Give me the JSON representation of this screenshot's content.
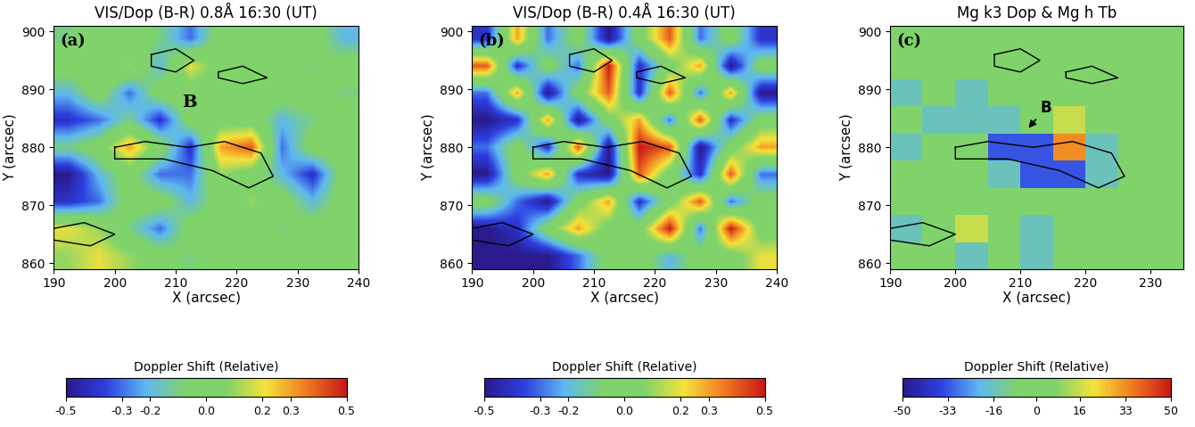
{
  "chart_data": [
    {
      "type": "heatmap",
      "title": "VIS/Dop (B-R) 0.8Å 16:30 (UT)",
      "panel_label": "(a)",
      "xlabel": "X (arcsec)",
      "ylabel": "Y (arcsec)",
      "xlim": [
        190,
        240
      ],
      "ylim": [
        859,
        901
      ],
      "xticks": [
        190,
        200,
        210,
        220,
        230,
        240
      ],
      "yticks": [
        860,
        870,
        880,
        890,
        900
      ],
      "colorbar_label": "Doppler Shift (Relative)",
      "clim": [
        -0.5,
        0.5
      ],
      "colorbar_ticks": [
        -0.5,
        -0.3,
        -0.2,
        {
          "value": 0,
          "label": "0.0"
        },
        0.2,
        0.3,
        0.5
      ],
      "cells": [
        [
          0.1,
          0.2,
          0.1,
          0,
          -0.1,
          0,
          0,
          0,
          0,
          0
        ],
        [
          0.2,
          0.1,
          -0.1,
          -0.3,
          0,
          0,
          0,
          -0.1,
          0,
          0
        ],
        [
          -0.4,
          -0.3,
          0,
          0,
          -0.2,
          0,
          0.1,
          0,
          -0.2,
          0
        ],
        [
          -0.5,
          -0.2,
          0,
          -0.3,
          -0.3,
          0.1,
          0,
          -0.2,
          -0.4,
          0
        ],
        [
          -0.1,
          0,
          0.3,
          0,
          -0.4,
          0.3,
          0.4,
          -0.3,
          0,
          0
        ],
        [
          -0.4,
          -0.3,
          -0.1,
          -0.4,
          0,
          0,
          0,
          -0.2,
          -0.1,
          0
        ],
        [
          -0.2,
          0,
          -0.3,
          0,
          0,
          0,
          0,
          0,
          0,
          -0.1
        ],
        [
          0,
          0,
          0.1,
          -0.2,
          0.2,
          0,
          0,
          0,
          -0.1,
          0
        ],
        [
          -0.1,
          0,
          0,
          -0.1,
          -0.3,
          0,
          0,
          0,
          0,
          -0.2
        ]
      ],
      "contours": [
        [
          [
            200,
            880
          ],
          [
            205,
            881
          ],
          [
            212,
            880
          ],
          [
            218,
            881
          ],
          [
            224,
            879
          ],
          [
            226,
            875
          ],
          [
            222,
            873
          ],
          [
            216,
            876
          ],
          [
            208,
            878
          ],
          [
            200,
            878
          ],
          [
            200,
            880
          ]
        ],
        [
          [
            206,
            896
          ],
          [
            210,
            897
          ],
          [
            213,
            895
          ],
          [
            210,
            893
          ],
          [
            206,
            894
          ],
          [
            206,
            896
          ]
        ],
        [
          [
            217,
            893
          ],
          [
            221,
            894
          ],
          [
            225,
            892
          ],
          [
            221,
            891
          ],
          [
            217,
            892
          ],
          [
            217,
            893
          ]
        ],
        [
          [
            190,
            866
          ],
          [
            195,
            867
          ],
          [
            200,
            865
          ],
          [
            196,
            863
          ],
          [
            190,
            864
          ],
          [
            190,
            866
          ]
        ]
      ],
      "annotations": [
        {
          "text": "B",
          "x": 211,
          "y": 887
        }
      ]
    },
    {
      "type": "heatmap",
      "title": "VIS/Dop (B-R) 0.4Å 16:30 (UT)",
      "panel_label": "(b)",
      "xlabel": "X (arcsec)",
      "ylabel": "Y (arcsec)",
      "xlim": [
        190,
        240
      ],
      "ylim": [
        859,
        901
      ],
      "xticks": [
        190,
        200,
        210,
        220,
        230,
        240
      ],
      "yticks": [
        860,
        870,
        880,
        890,
        900
      ],
      "colorbar_label": "Doppler Shift (Relative)",
      "clim": [
        -0.5,
        0.5
      ],
      "colorbar_ticks": [
        -0.5,
        -0.3,
        -0.2,
        {
          "value": 0,
          "label": "0.0"
        },
        0.2,
        0.3,
        0.5
      ],
      "cells": [
        [
          -0.5,
          -0.5,
          -0.5,
          -0.3,
          0,
          0,
          -0.2,
          0,
          0,
          0.2
        ],
        [
          -0.5,
          -0.4,
          0,
          0.3,
          0,
          0,
          0.5,
          -0.3,
          0.5,
          0
        ],
        [
          0,
          -0.3,
          -0.5,
          0,
          0.3,
          -0.4,
          0,
          0.4,
          -0.3,
          0
        ],
        [
          -0.5,
          0,
          0.3,
          -0.4,
          -0.5,
          0.4,
          0,
          -0.4,
          0.4,
          -0.3
        ],
        [
          -0.3,
          0,
          -0.4,
          0.4,
          -0.5,
          0.5,
          0.4,
          -0.5,
          0,
          0.3
        ],
        [
          -0.5,
          -0.4,
          0.3,
          -0.5,
          0,
          0.3,
          -0.3,
          0.4,
          -0.4,
          0
        ],
        [
          -0.3,
          0.3,
          -0.5,
          0,
          0.4,
          -0.4,
          0.4,
          -0.3,
          0.3,
          -0.5
        ],
        [
          0.4,
          -0.4,
          0,
          -0.3,
          0.5,
          -0.4,
          0,
          0.3,
          -0.5,
          0
        ],
        [
          -0.4,
          0.3,
          -0.3,
          0,
          -0.5,
          0,
          0.4,
          -0.3,
          0,
          -0.4
        ]
      ],
      "contours": [
        [
          [
            200,
            880
          ],
          [
            205,
            881
          ],
          [
            212,
            880
          ],
          [
            218,
            881
          ],
          [
            224,
            879
          ],
          [
            226,
            875
          ],
          [
            222,
            873
          ],
          [
            216,
            876
          ],
          [
            208,
            878
          ],
          [
            200,
            878
          ],
          [
            200,
            880
          ]
        ],
        [
          [
            206,
            896
          ],
          [
            210,
            897
          ],
          [
            213,
            895
          ],
          [
            210,
            893
          ],
          [
            206,
            894
          ],
          [
            206,
            896
          ]
        ],
        [
          [
            217,
            893
          ],
          [
            221,
            894
          ],
          [
            225,
            892
          ],
          [
            221,
            891
          ],
          [
            217,
            892
          ],
          [
            217,
            893
          ]
        ],
        [
          [
            190,
            866
          ],
          [
            195,
            867
          ],
          [
            200,
            865
          ],
          [
            196,
            863
          ],
          [
            190,
            864
          ],
          [
            190,
            866
          ]
        ]
      ],
      "annotations": []
    },
    {
      "type": "heatmap",
      "title": "Mg k3 Dop & Mg h Tb",
      "panel_label": "(c)",
      "xlabel": "X (arcsec)",
      "ylabel": "Y (arcsec)",
      "xlim": [
        190,
        235
      ],
      "ylim": [
        859,
        901
      ],
      "xticks": [
        190,
        200,
        210,
        220,
        230
      ],
      "yticks": [
        860,
        870,
        880,
        890,
        900
      ],
      "colorbar_label": "Doppler Shift (Relative)",
      "clim": [
        -50,
        50
      ],
      "colorbar_ticks": [
        -50,
        -33,
        -16,
        0,
        16,
        33,
        50
      ],
      "cells": [
        [
          0,
          0,
          -16,
          0,
          -16,
          0,
          0,
          0,
          0
        ],
        [
          -16,
          0,
          16,
          0,
          -16,
          0,
          0,
          0,
          0
        ],
        [
          0,
          0,
          0,
          0,
          0,
          0,
          0,
          0,
          0
        ],
        [
          0,
          0,
          0,
          -16,
          -33,
          -33,
          -16,
          0,
          0
        ],
        [
          -16,
          0,
          0,
          -33,
          -33,
          33,
          -16,
          0,
          0
        ],
        [
          0,
          -16,
          -16,
          -16,
          0,
          16,
          0,
          0,
          0
        ],
        [
          -16,
          0,
          -16,
          0,
          0,
          0,
          0,
          0,
          0
        ],
        [
          0,
          0,
          0,
          0,
          0,
          0,
          0,
          0,
          0
        ],
        [
          0,
          0,
          0,
          0,
          0,
          0,
          0,
          0,
          0
        ]
      ],
      "contours": [
        [
          [
            200,
            880
          ],
          [
            205,
            881
          ],
          [
            212,
            880
          ],
          [
            218,
            881
          ],
          [
            224,
            879
          ],
          [
            226,
            875
          ],
          [
            222,
            873
          ],
          [
            216,
            876
          ],
          [
            208,
            878
          ],
          [
            200,
            878
          ],
          [
            200,
            880
          ]
        ],
        [
          [
            206,
            896
          ],
          [
            210,
            897
          ],
          [
            213,
            895
          ],
          [
            210,
            893
          ],
          [
            206,
            894
          ],
          [
            206,
            896
          ]
        ],
        [
          [
            217,
            893
          ],
          [
            221,
            894
          ],
          [
            225,
            892
          ],
          [
            221,
            891
          ],
          [
            217,
            892
          ],
          [
            217,
            893
          ]
        ],
        [
          [
            190,
            866
          ],
          [
            195,
            867
          ],
          [
            200,
            865
          ],
          [
            196,
            863
          ],
          [
            190,
            864
          ],
          [
            190,
            866
          ]
        ]
      ],
      "annotations": [
        {
          "text": "B",
          "x": 213,
          "y": 886,
          "arrow_to": [
            211,
            883
          ]
        }
      ]
    }
  ]
}
